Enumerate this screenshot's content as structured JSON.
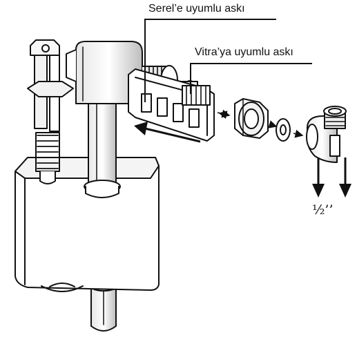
{
  "labels": {
    "serel_hanger": "Serel’e uyumlu askı",
    "vitra_hanger": "Vitra’ya uyumlu askı",
    "connection_size": "½’’"
  },
  "colors": {
    "line": "#111111",
    "fill": "#ffffff",
    "shade": "#cfcfcf"
  }
}
